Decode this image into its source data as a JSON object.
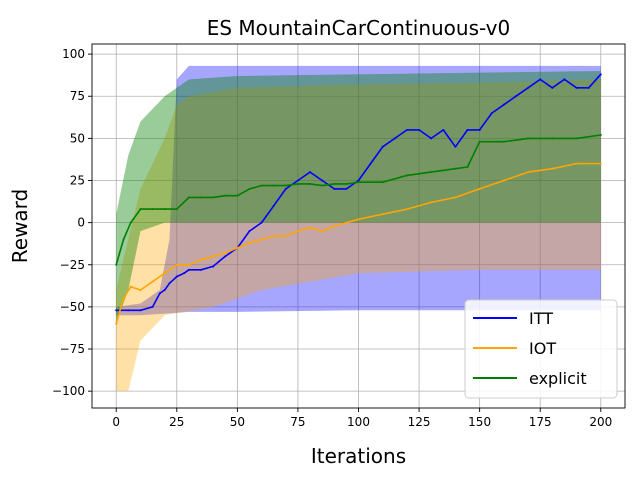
{
  "chart_data": {
    "type": "line",
    "title": "ES MountainCarContinuous-v0",
    "xlabel": "Iterations",
    "ylabel": "Reward",
    "xlim": [
      -10,
      210
    ],
    "ylim": [
      -110,
      106
    ],
    "xticks": [
      0,
      25,
      50,
      75,
      100,
      125,
      150,
      175,
      200
    ],
    "yticks": [
      -100,
      -75,
      -50,
      -25,
      0,
      25,
      50,
      75,
      100
    ],
    "grid": true,
    "legend_position": "bottom-right",
    "series": [
      {
        "name": "ITT",
        "color": "#0000ff",
        "points": [
          [
            0,
            -52
          ],
          [
            5,
            -52
          ],
          [
            10,
            -52
          ],
          [
            15,
            -50
          ],
          [
            18,
            -42
          ],
          [
            20,
            -40
          ],
          [
            22,
            -36
          ],
          [
            25,
            -32
          ],
          [
            28,
            -30
          ],
          [
            30,
            -28
          ],
          [
            35,
            -28
          ],
          [
            40,
            -26
          ],
          [
            45,
            -20
          ],
          [
            50,
            -15
          ],
          [
            55,
            -5
          ],
          [
            60,
            0
          ],
          [
            65,
            10
          ],
          [
            70,
            20
          ],
          [
            75,
            25
          ],
          [
            80,
            30
          ],
          [
            85,
            25
          ],
          [
            90,
            20
          ],
          [
            95,
            20
          ],
          [
            100,
            25
          ],
          [
            105,
            35
          ],
          [
            110,
            45
          ],
          [
            115,
            50
          ],
          [
            120,
            55
          ],
          [
            125,
            55
          ],
          [
            130,
            50
          ],
          [
            135,
            55
          ],
          [
            140,
            45
          ],
          [
            145,
            55
          ],
          [
            150,
            55
          ],
          [
            155,
            65
          ],
          [
            160,
            70
          ],
          [
            165,
            75
          ],
          [
            170,
            80
          ],
          [
            175,
            85
          ],
          [
            180,
            80
          ],
          [
            185,
            85
          ],
          [
            190,
            80
          ],
          [
            195,
            80
          ],
          [
            200,
            88
          ]
        ],
        "lower": [
          [
            0,
            -55
          ],
          [
            10,
            -55
          ],
          [
            20,
            -54
          ],
          [
            30,
            -53
          ],
          [
            50,
            -53
          ],
          [
            100,
            -52
          ],
          [
            150,
            -52
          ],
          [
            200,
            -52
          ]
        ],
        "upper": [
          [
            0,
            -50
          ],
          [
            10,
            -48
          ],
          [
            18,
            -40
          ],
          [
            22,
            -10
          ],
          [
            25,
            85
          ],
          [
            30,
            93
          ],
          [
            50,
            93
          ],
          [
            100,
            93
          ],
          [
            150,
            93
          ],
          [
            200,
            93
          ]
        ]
      },
      {
        "name": "IOT",
        "color": "#ffa500",
        "points": [
          [
            0,
            -60
          ],
          [
            3,
            -45
          ],
          [
            6,
            -38
          ],
          [
            10,
            -40
          ],
          [
            15,
            -35
          ],
          [
            20,
            -30
          ],
          [
            25,
            -25
          ],
          [
            30,
            -25
          ],
          [
            35,
            -22
          ],
          [
            40,
            -20
          ],
          [
            45,
            -18
          ],
          [
            50,
            -15
          ],
          [
            55,
            -12
          ],
          [
            60,
            -10
          ],
          [
            65,
            -8
          ],
          [
            70,
            -8
          ],
          [
            75,
            -5
          ],
          [
            80,
            -3
          ],
          [
            85,
            -5
          ],
          [
            90,
            -2
          ],
          [
            95,
            0
          ],
          [
            100,
            2
          ],
          [
            110,
            5
          ],
          [
            120,
            8
          ],
          [
            130,
            12
          ],
          [
            140,
            15
          ],
          [
            150,
            20
          ],
          [
            160,
            25
          ],
          [
            170,
            30
          ],
          [
            180,
            32
          ],
          [
            190,
            35
          ],
          [
            200,
            35
          ]
        ],
        "lower": [
          [
            0,
            -100
          ],
          [
            5,
            -100
          ],
          [
            10,
            -70
          ],
          [
            20,
            -55
          ],
          [
            40,
            -50
          ],
          [
            60,
            -40
          ],
          [
            100,
            -30
          ],
          [
            150,
            -28
          ],
          [
            200,
            -28
          ]
        ],
        "upper": [
          [
            0,
            -40
          ],
          [
            5,
            -10
          ],
          [
            10,
            20
          ],
          [
            20,
            50
          ],
          [
            25,
            70
          ],
          [
            30,
            75
          ],
          [
            50,
            80
          ],
          [
            100,
            82
          ],
          [
            150,
            83
          ],
          [
            200,
            85
          ]
        ]
      },
      {
        "name": "explicit",
        "color": "#008000",
        "points": [
          [
            0,
            -25
          ],
          [
            3,
            -10
          ],
          [
            6,
            0
          ],
          [
            10,
            8
          ],
          [
            15,
            8
          ],
          [
            20,
            8
          ],
          [
            25,
            8
          ],
          [
            30,
            15
          ],
          [
            35,
            15
          ],
          [
            40,
            15
          ],
          [
            45,
            16
          ],
          [
            50,
            16
          ],
          [
            55,
            20
          ],
          [
            60,
            22
          ],
          [
            65,
            22
          ],
          [
            70,
            22
          ],
          [
            75,
            23
          ],
          [
            80,
            23
          ],
          [
            85,
            22
          ],
          [
            90,
            23
          ],
          [
            95,
            23
          ],
          [
            100,
            24
          ],
          [
            110,
            24
          ],
          [
            120,
            28
          ],
          [
            130,
            30
          ],
          [
            140,
            32
          ],
          [
            145,
            33
          ],
          [
            150,
            48
          ],
          [
            160,
            48
          ],
          [
            170,
            50
          ],
          [
            180,
            50
          ],
          [
            190,
            50
          ],
          [
            200,
            52
          ]
        ],
        "lower": [
          [
            0,
            -60
          ],
          [
            5,
            -40
          ],
          [
            10,
            -5
          ],
          [
            20,
            0
          ],
          [
            30,
            0
          ],
          [
            50,
            0
          ],
          [
            100,
            0
          ],
          [
            150,
            0
          ],
          [
            200,
            0
          ]
        ],
        "upper": [
          [
            0,
            5
          ],
          [
            5,
            40
          ],
          [
            10,
            60
          ],
          [
            20,
            75
          ],
          [
            25,
            80
          ],
          [
            30,
            85
          ],
          [
            50,
            87
          ],
          [
            100,
            88
          ],
          [
            150,
            89
          ],
          [
            200,
            90
          ]
        ]
      }
    ]
  }
}
